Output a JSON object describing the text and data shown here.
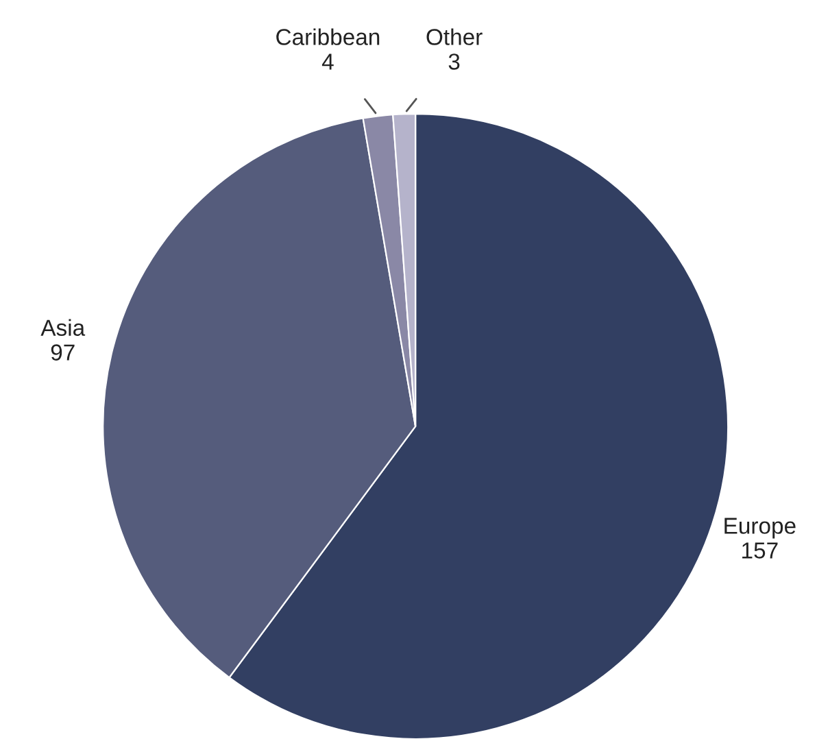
{
  "chart_data": {
    "type": "pie",
    "categories": [
      "Europe",
      "Asia",
      "Caribbean",
      "Other"
    ],
    "values": [
      157,
      97,
      4,
      3
    ],
    "colors": [
      "#323f62",
      "#555c7c",
      "#8a88a6",
      "#b5b3cb"
    ],
    "data_labels": true,
    "legend": false
  }
}
